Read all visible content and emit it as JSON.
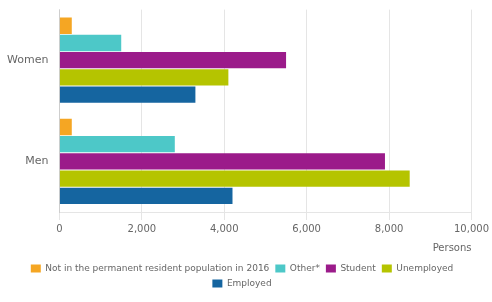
{
  "chart_data": {
    "type": "bar",
    "orientation": "horizontal",
    "categories": [
      "Women",
      "Men"
    ],
    "series": [
      {
        "name": "Not in the permanent resident population in 2016",
        "color": "#f5a623",
        "values": [
          300,
          300
        ]
      },
      {
        "name": "Other*",
        "color": "#4dc8c8",
        "values": [
          1500,
          2800
        ]
      },
      {
        "name": "Student",
        "color": "#9b1b8a",
        "values": [
          5500,
          7900
        ]
      },
      {
        "name": "Unemployed",
        "color": "#b5c400",
        "values": [
          4100,
          8500
        ]
      },
      {
        "name": "Employed",
        "color": "#1565a0",
        "values": [
          3300,
          4200
        ]
      }
    ],
    "xlabel": "Persons",
    "xlim": [
      0,
      10000
    ],
    "xticks": [
      0,
      {
        "value": 2000,
        "label": "2,000"
      },
      {
        "value": 4000,
        "label": "4,000"
      },
      {
        "value": 6000,
        "label": "6,000"
      },
      {
        "value": 8000,
        "label": "8,000"
      },
      {
        "value": 10000,
        "label": "10,000"
      }
    ],
    "grid": true,
    "legend": "bottom"
  }
}
